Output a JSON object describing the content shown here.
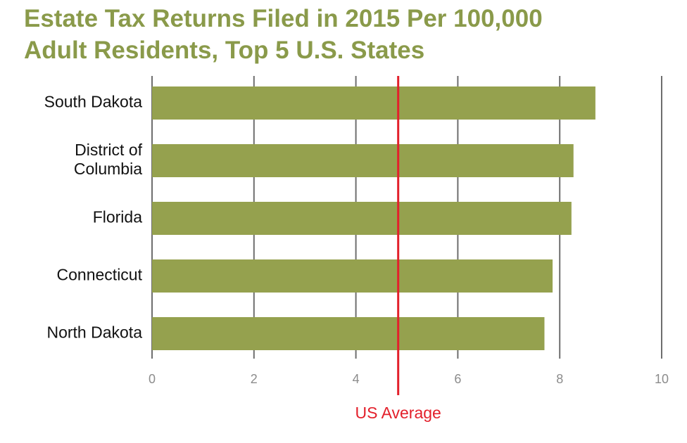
{
  "title_lines": [
    "Estate Tax Returns Filed in 2015 Per 100,000",
    "Adult Residents, Top 5 U.S. States"
  ],
  "colors": {
    "bar": "#95a14e",
    "title": "#8a9a4a",
    "reference_line": "#e3202b",
    "gridline": "#6e6e6e",
    "tick_label": "#8c8c8c"
  },
  "chart_data": {
    "type": "bar",
    "orientation": "horizontal",
    "title": "Estate Tax Returns Filed in 2015 Per 100,000 Adult Residents, Top 5 U.S. States",
    "categories": [
      [
        "South Dakota"
      ],
      [
        "District of",
        "Columbia"
      ],
      [
        "Florida"
      ],
      [
        "Connecticut"
      ],
      [
        "North Dakota"
      ]
    ],
    "values": [
      8.7,
      8.27,
      8.23,
      7.86,
      7.7
    ],
    "xlim": [
      0,
      10
    ],
    "xticks": [
      0,
      2,
      4,
      6,
      8,
      10
    ],
    "grid": true,
    "reference_line": {
      "label": "US Average",
      "value": 4.83
    }
  }
}
